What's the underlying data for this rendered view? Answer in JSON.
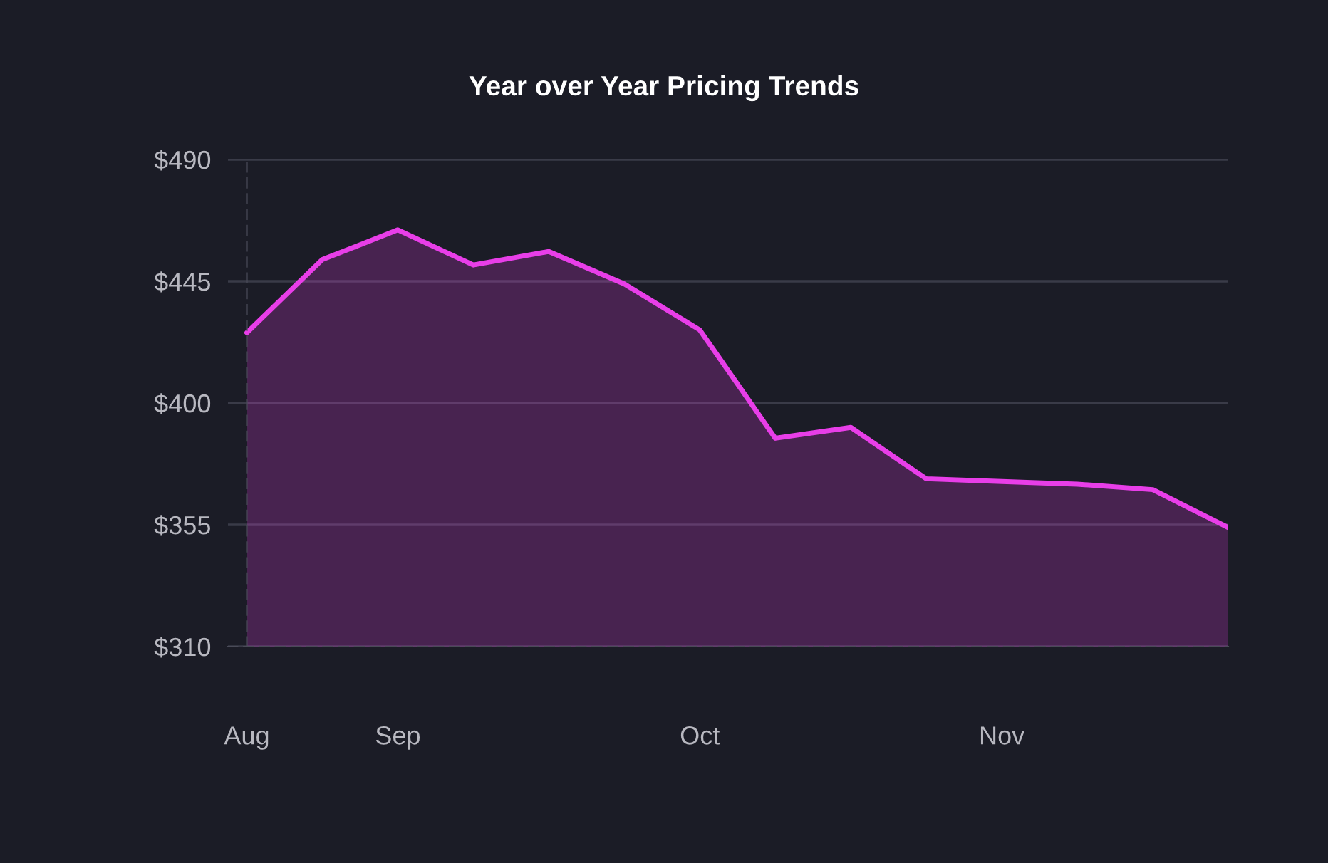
{
  "chart_data": {
    "type": "area",
    "title": "Year over Year Pricing Trends",
    "categories": [
      "Aug",
      null,
      "Sep",
      null,
      null,
      null,
      "Oct",
      null,
      null,
      null,
      "Nov",
      null,
      null,
      null
    ],
    "series": [
      {
        "color": "#e83ee8",
        "values": [
          426,
          453,
          464,
          451,
          456,
          444,
          427,
          387,
          391,
          372,
          371,
          370,
          368,
          354
        ]
      }
    ],
    "ylim": [
      310,
      490
    ],
    "yticks": [
      {
        "value": 310,
        "label": "$310"
      },
      {
        "value": 355,
        "label": "$355"
      },
      {
        "value": 400,
        "label": "$400"
      },
      {
        "value": 445,
        "label": "$445"
      },
      {
        "value": 490,
        "label": "$490"
      }
    ],
    "grid": "y"
  }
}
